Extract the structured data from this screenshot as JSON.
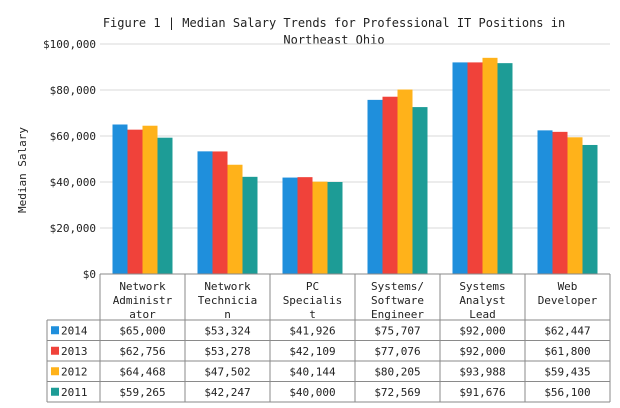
{
  "chart_data": {
    "type": "bar",
    "title": "Figure 1 | Median Salary Trends for Professional IT Positions in Northeast Ohio",
    "title_lines": [
      "Figure 1 | Median Salary Trends for Professional IT Positions in",
      "Northeast Ohio"
    ],
    "ylabel": "Median Salary",
    "xlabel": "",
    "ylim": [
      0,
      100000
    ],
    "y_ticks": [
      0,
      20000,
      40000,
      60000,
      80000,
      100000
    ],
    "y_tick_labels": [
      "$0",
      "$20,000",
      "$40,000",
      "$60,000",
      "$80,000",
      "$100,000"
    ],
    "grid": true,
    "legend_placement": "data-table",
    "categories": [
      "Network Administrator",
      "Network Technician",
      "PC Specialist",
      "Systems/ Software Engineer",
      "Systems Analyst Lead",
      "Web Developer"
    ],
    "category_label_lines": [
      [
        "Network",
        "Administr",
        "ator"
      ],
      [
        "Network",
        "Technicia",
        "n"
      ],
      [
        "PC",
        "Specialis",
        "t"
      ],
      [
        "Systems/",
        "Software",
        "Engineer"
      ],
      [
        "Systems",
        "Analyst",
        "Lead"
      ],
      [
        "Web",
        "Developer"
      ]
    ],
    "series": [
      {
        "name": "2014",
        "color": "#1f8fdc",
        "values": [
          65000,
          53324,
          41926,
          75707,
          92000,
          62447
        ],
        "labels": [
          "$65,000",
          "$53,324",
          "$41,926",
          "$75,707",
          "$92,000",
          "$62,447"
        ]
      },
      {
        "name": "2013",
        "color": "#f0423a",
        "values": [
          62756,
          53278,
          42109,
          77076,
          92000,
          61800
        ],
        "labels": [
          "$62,756",
          "$53,278",
          "$42,109",
          "$77,076",
          "$92,000",
          "$61,800"
        ]
      },
      {
        "name": "2012",
        "color": "#ffb21a",
        "values": [
          64468,
          47502,
          40144,
          80205,
          93988,
          59435
        ],
        "labels": [
          "$64,468",
          "$47,502",
          "$40,144",
          "$80,205",
          "$93,988",
          "$59,435"
        ]
      },
      {
        "name": "2011",
        "color": "#1d9c96",
        "values": [
          59265,
          42247,
          40000,
          72569,
          91676,
          56100
        ],
        "labels": [
          "$59,265",
          "$42,247",
          "$40,000",
          "$72,569",
          "$91,676",
          "$56,100"
        ]
      }
    ]
  }
}
